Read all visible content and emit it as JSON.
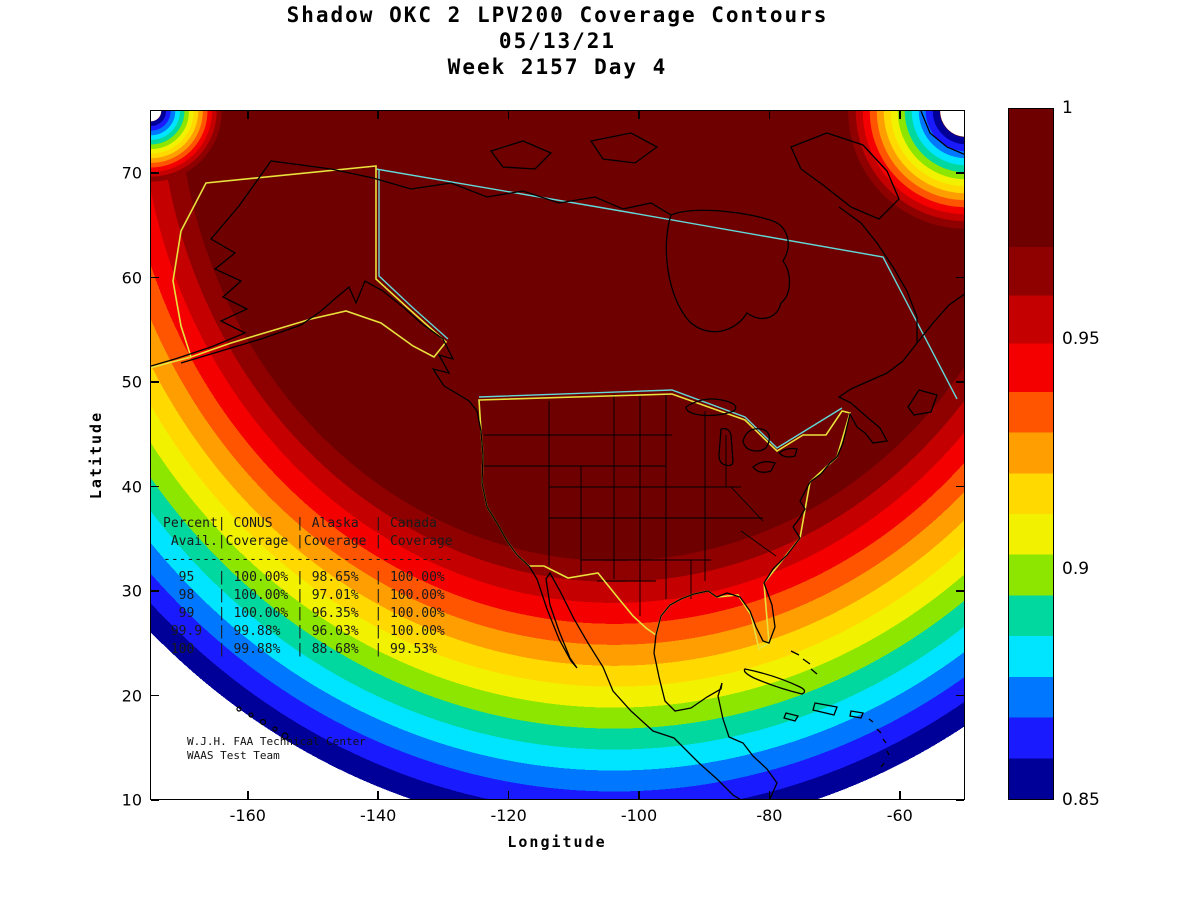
{
  "title": {
    "line1": "Shadow OKC 2 LPV200 Coverage Contours",
    "line2": "05/13/21",
    "line3": "Week 2157 Day 4"
  },
  "axes": {
    "x": {
      "label": "Longitude",
      "ticks": [
        -160,
        -140,
        -120,
        -100,
        -80,
        -60
      ]
    },
    "y": {
      "label": "Latitude",
      "ticks": [
        70,
        60,
        50,
        40,
        30,
        20,
        10
      ]
    }
  },
  "colorbar": {
    "min": 0.85,
    "max": 1,
    "ticks": [
      1,
      0.95,
      0.9,
      0.85
    ],
    "tick_labels": [
      "1",
      "0.95",
      "0.9",
      "0.85"
    ]
  },
  "stats_table": {
    "lines": [
      "Percent| CONUS   | Alaska  | Canada",
      " Avail.|Coverage |Coverage | Coverage",
      "-------------------------------------",
      "  95   | 100.00% | 98.65%  | 100.00%",
      "  98   | 100.00% | 97.01%  | 100.00%",
      "  99   | 100.00% | 96.35%  | 100.00%",
      " 99.9  | 99.88%  | 96.03%  | 100.00%",
      " 100   | 99.88%  | 88.68%  | 99.53%"
    ],
    "columns": [
      "Percent Avail.",
      "CONUS Coverage",
      "Alaska Coverage",
      "Canada Coverage"
    ],
    "rows": [
      [
        "95",
        "100.00%",
        "98.65%",
        "100.00%"
      ],
      [
        "98",
        "100.00%",
        "97.01%",
        "100.00%"
      ],
      [
        "99",
        "100.00%",
        "96.35%",
        "100.00%"
      ],
      [
        "99.9",
        "99.88%",
        "96.03%",
        "100.00%"
      ],
      [
        "100",
        "99.88%",
        "88.68%",
        "99.53%"
      ]
    ]
  },
  "credit": {
    "line1": "W.J.H. FAA Technical Center",
    "line2": "WAAS Test Team"
  },
  "palette": {
    "band_colors": [
      "#6f0000",
      "#8f0000",
      "#c40000",
      "#f40000",
      "#ff5500",
      "#ff9e00",
      "#ffd900",
      "#f2f200",
      "#8ce600",
      "#00d8a0",
      "#00e5ff",
      "#0077ff",
      "#1a1aff",
      "#000099"
    ],
    "boundary_yellow": "#e8e23c",
    "boundary_cyan": "#63d8d8",
    "coastline": "#000000",
    "background": "#ffffff"
  },
  "chart_data": {
    "type": "heatmap",
    "title": "Shadow OKC 2 LPV200 Coverage Contours",
    "subtitle": [
      "05/13/21",
      "Week 2157 Day 4"
    ],
    "xlabel": "Longitude",
    "ylabel": "Latitude",
    "xlim": [
      -175,
      -50
    ],
    "ylim": [
      10,
      76
    ],
    "grid": false,
    "colorbar": {
      "range": [
        0.85,
        1
      ],
      "ticks": [
        0.85,
        0.9,
        0.95,
        1
      ],
      "position": "right"
    },
    "description": "WAAS LPV200 availability coverage contour map over North America. A dark-red core (availability ~1.0) covers CONUS, Alaska and Canada, with concentric rainbow contour bands (red, orange, yellow, green, cyan, blue) decreasing to 0.85 along the outer fringe. Yellow lines outline the CONUS and Alaska service volumes; cyan lines outline the Canada boundary.",
    "availability_table": {
      "columns": [
        "Percent Avail.",
        "CONUS Coverage",
        "Alaska Coverage",
        "Canada Coverage"
      ],
      "rows": [
        [
          95,
          "100.00%",
          "98.65%",
          "100.00%"
        ],
        [
          98,
          "100.00%",
          "97.01%",
          "100.00%"
        ],
        [
          99,
          "100.00%",
          "96.35%",
          "100.00%"
        ],
        [
          99.9,
          "99.88%",
          "96.03%",
          "100.00%"
        ],
        [
          100,
          "99.88%",
          "88.68%",
          "99.53%"
        ]
      ]
    },
    "annotations": [
      "W.J.H. FAA Technical Center",
      "WAAS Test Team"
    ]
  }
}
